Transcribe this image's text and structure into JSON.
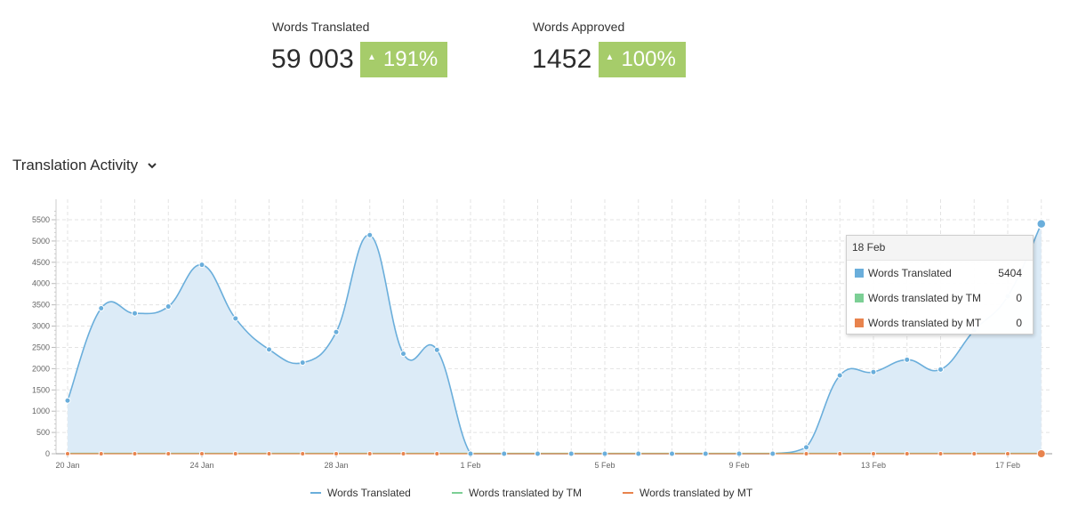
{
  "stats": {
    "translated": {
      "label": "Words Translated",
      "value": "59 003",
      "change": "191%"
    },
    "approved": {
      "label": "Words Approved",
      "value": "1452",
      "change": "100%"
    }
  },
  "chart_title": "Translation Activity",
  "colors": {
    "translated": "#6aaedb",
    "tm": "#7ccf95",
    "mt": "#e8834d",
    "area": "#dcebf7",
    "badge": "#a6cc6a"
  },
  "tooltip": {
    "date": "18 Feb",
    "rows": [
      {
        "name": "Words Translated",
        "value": "5404"
      },
      {
        "name": "Words translated by TM",
        "value": "0"
      },
      {
        "name": "Words translated by MT",
        "value": "0"
      }
    ]
  },
  "legend": [
    "Words Translated",
    "Words translated by TM",
    "Words translated by MT"
  ],
  "chart_data": {
    "type": "area",
    "x": [
      "20 Jan",
      "21 Jan",
      "22 Jan",
      "23 Jan",
      "24 Jan",
      "25 Jan",
      "26 Jan",
      "27 Jan",
      "28 Jan",
      "29 Jan",
      "30 Jan",
      "31 Jan",
      "1 Feb",
      "2 Feb",
      "3 Feb",
      "4 Feb",
      "5 Feb",
      "6 Feb",
      "7 Feb",
      "8 Feb",
      "9 Feb",
      "10 Feb",
      "11 Feb",
      "12 Feb",
      "13 Feb",
      "14 Feb",
      "15 Feb",
      "16 Feb",
      "17 Feb",
      "18 Feb"
    ],
    "x_tick_labels": [
      "20 Jan",
      "24 Jan",
      "28 Jan",
      "1 Feb",
      "5 Feb",
      "9 Feb",
      "13 Feb",
      "17 Feb"
    ],
    "y_ticks": [
      0,
      500,
      1000,
      1500,
      2000,
      2500,
      3000,
      3500,
      4000,
      4500,
      5000,
      5500
    ],
    "ylim": [
      0,
      5800
    ],
    "grid": true,
    "series": [
      {
        "name": "Words Translated",
        "values": [
          1250,
          3420,
          3300,
          3460,
          4440,
          3180,
          2450,
          2140,
          2860,
          5140,
          2350,
          2440,
          0,
          0,
          0,
          0,
          0,
          0,
          0,
          0,
          0,
          0,
          150,
          1840,
          1920,
          2210,
          1980,
          2900,
          3700,
          5404
        ]
      },
      {
        "name": "Words translated by TM",
        "values": [
          0,
          0,
          0,
          0,
          0,
          0,
          0,
          0,
          0,
          0,
          0,
          0,
          0,
          0,
          0,
          0,
          0,
          0,
          0,
          0,
          0,
          0,
          0,
          0,
          0,
          0,
          0,
          0,
          0,
          0
        ]
      },
      {
        "name": "Words translated by MT",
        "values": [
          0,
          0,
          0,
          0,
          0,
          0,
          0,
          0,
          0,
          0,
          0,
          0,
          0,
          0,
          0,
          0,
          0,
          0,
          0,
          0,
          0,
          0,
          0,
          0,
          0,
          0,
          0,
          0,
          0,
          0
        ]
      }
    ]
  }
}
